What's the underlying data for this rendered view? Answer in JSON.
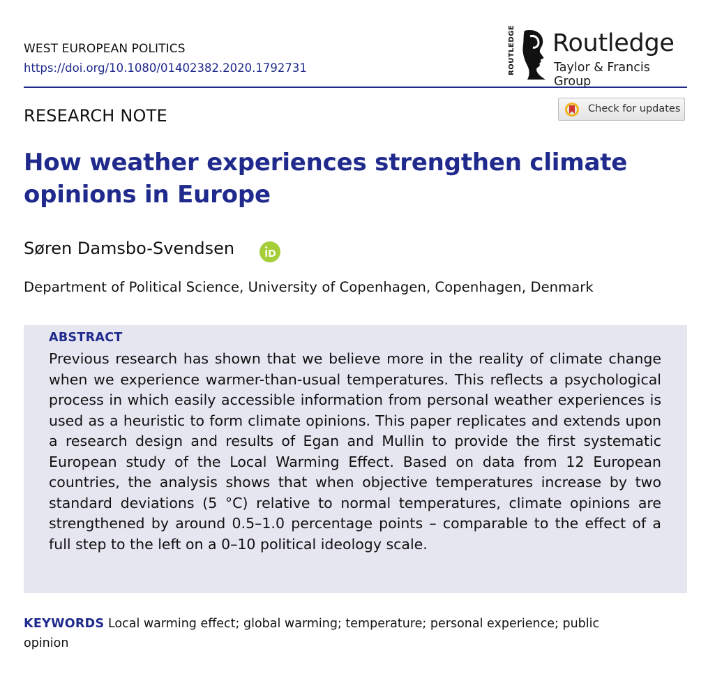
{
  "header": {
    "journal": "WEST EUROPEAN POLITICS",
    "doi": "https://doi.org/10.1080/01402382.2020.1792731"
  },
  "publisher": {
    "spine_text": "ROUTLEDGE",
    "name": "Routledge",
    "group": "Taylor & Francis Group"
  },
  "colors": {
    "accent": "#1f2a8c",
    "abstract_bg": "#e6e6f1",
    "orcid": "#a6ce39"
  },
  "article": {
    "type": "RESEARCH NOTE",
    "title": "How weather experiences strengthen climate opinions in Europe",
    "author": "Søren Damsbo-Svendsen",
    "affiliation": "Department of Political Science, University of Copenhagen, Copenhagen, Denmark"
  },
  "updates_button": {
    "label": "Check for updates",
    "icon": "check-for-updates-icon"
  },
  "orcid": {
    "icon": "orcid-icon"
  },
  "abstract": {
    "heading": "ABSTRACT",
    "text": "Previous research has shown that we believe more in the reality of climate change when we experience warmer-than-usual temperatures. This reflects a psychological process in which easily accessible information from personal weather experiences is used as a heuristic to form climate opinions. This paper replicates and extends upon a research design and results of Egan and Mullin to provide the first systematic European study of the Local Warming Effect. Based on data from 12 European countries, the analysis shows that when objective temperatures increase by two standard deviations (5 °C) rela­tive to normal temperatures, climate opinions are strengthened by around 0.5–1.0 percentage points – comparable to the effect of a full step to the left on a 0–10 political ideology scale."
  },
  "keywords": {
    "label": "KEYWORDS",
    "text": "Local warming effect; global warming; temperature; personal experience; public opinion"
  }
}
